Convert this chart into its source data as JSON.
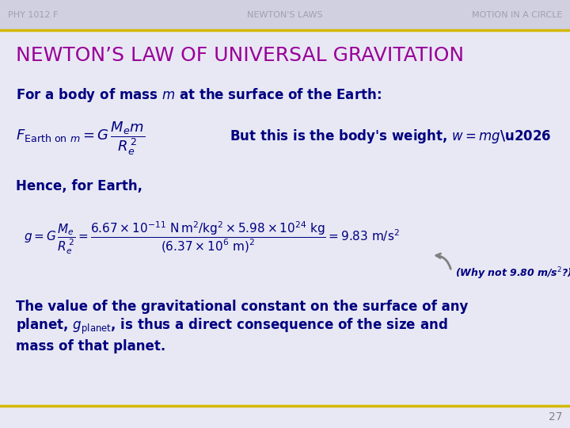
{
  "bg_color": "#e8e8f4",
  "header_bg_color": "#d0d0e0",
  "gold_line_color": "#d4b800",
  "header_text_color": "#a0a0b0",
  "title_color": "#990099",
  "body_color": "#000080",
  "page_num_color": "#808090",
  "left_header": "PHY 1012 F",
  "center_header": "NEWTON'S LAWS",
  "right_header": "MOTION IN A CIRCLE",
  "title": "NEWTON’S LAW OF UNIVERSAL GRAVITATION",
  "page_number": "27",
  "header_fontsize": 8,
  "title_fontsize": 18,
  "body_fontsize": 12,
  "small_fontsize": 9
}
